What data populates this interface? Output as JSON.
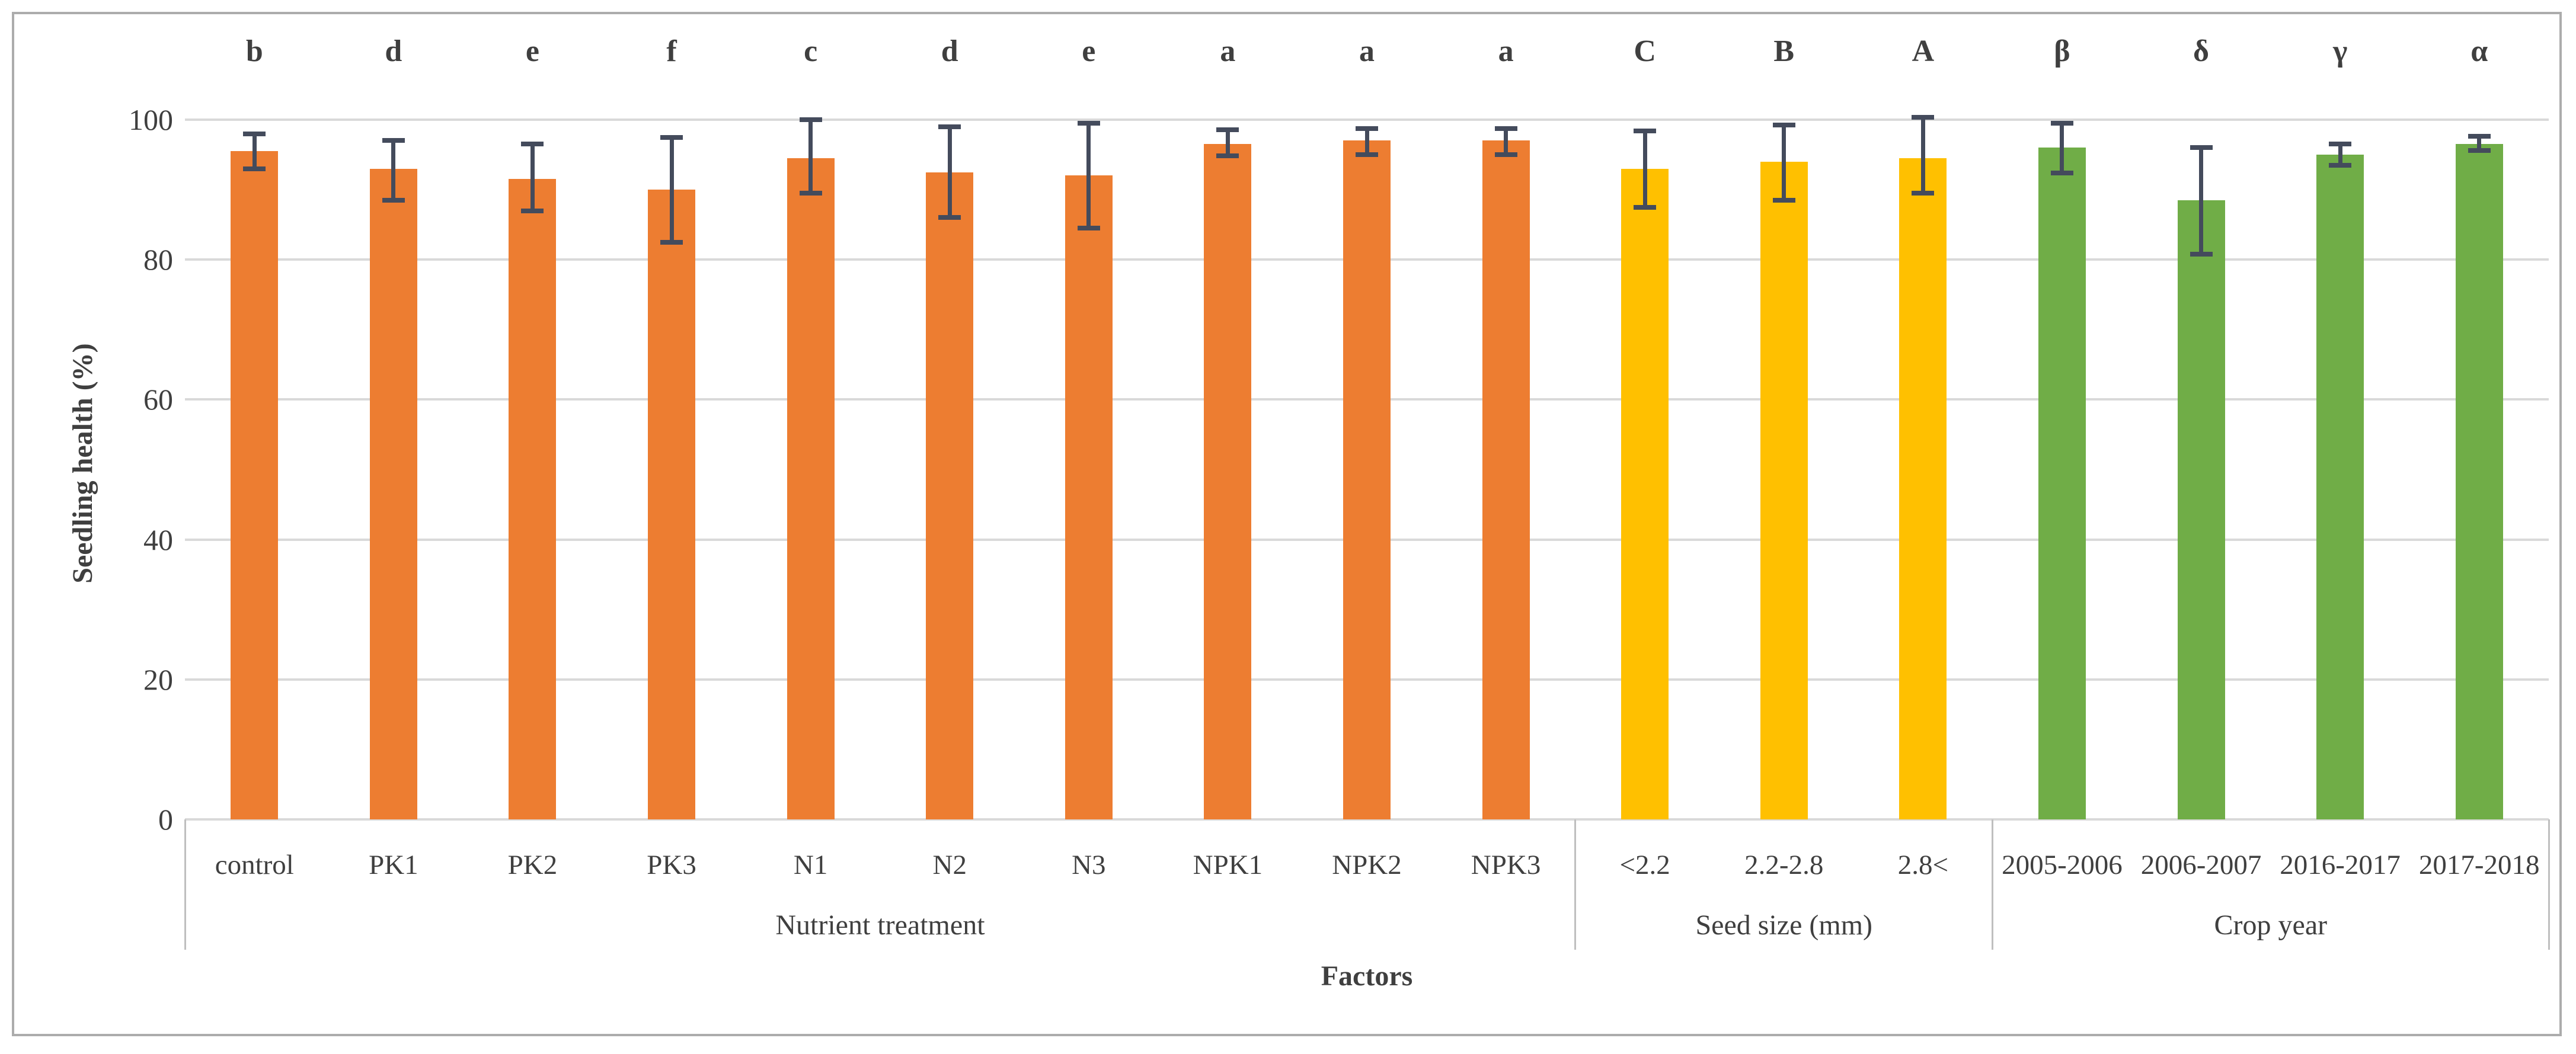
{
  "chart_data": {
    "type": "bar",
    "title": "",
    "xlabel": "Factors",
    "ylabel": "Seedling health (%)",
    "ylim": [
      0,
      100
    ],
    "yticks": [
      0,
      20,
      40,
      60,
      80,
      100
    ],
    "grid": "horizontal",
    "legend": "none",
    "categories": [
      "control",
      "PK1",
      "PK2",
      "PK3",
      "N1",
      "N2",
      "N3",
      "NPK1",
      "NPK2",
      "NPK3",
      "<2.2",
      "2.2-2.8",
      "2.8<",
      "2005-2006",
      "2006-2007",
      "2016-2017",
      "2017-2018"
    ],
    "values": [
      95.5,
      93,
      91.5,
      90,
      94.5,
      92.5,
      92,
      96.5,
      97,
      97,
      93,
      94,
      94.5,
      96,
      88.5,
      95,
      96.5
    ],
    "error_high": [
      98,
      97,
      96.5,
      97.5,
      100,
      99,
      99.5,
      98.6,
      98.7,
      98.7,
      98.4,
      99.2,
      100.3,
      99.5,
      96,
      96.5,
      97.6
    ],
    "error_low": [
      93,
      88.5,
      87,
      82.5,
      89.5,
      86,
      84.5,
      94.8,
      95,
      95,
      87.5,
      88.5,
      89.5,
      92.4,
      80.8,
      93.5,
      95.6
    ],
    "sig_letters": [
      "b",
      "d",
      "e",
      "f",
      "c",
      "d",
      "e",
      "a",
      "a",
      "a",
      "C",
      "B",
      "A",
      "β",
      "δ",
      "γ",
      "α"
    ],
    "groups": [
      {
        "label": "Nutrient treatment",
        "start": 0,
        "count": 10,
        "color": "#ED7D31"
      },
      {
        "label": "Seed size (mm)",
        "start": 10,
        "count": 3,
        "color": "#FFC000"
      },
      {
        "label": "Crop year",
        "start": 13,
        "count": 4,
        "color": "#70AD47"
      }
    ],
    "colors": {
      "nutrient_treatment_bars": "#ED7D31",
      "seed_size_bars": "#FFC000",
      "crop_year_bars": "#70AD47",
      "error_bars": "#444B5C",
      "gridlines": "#D9D9D9",
      "text": "#3F3F3F",
      "figure_border": "#ACACAC"
    }
  }
}
